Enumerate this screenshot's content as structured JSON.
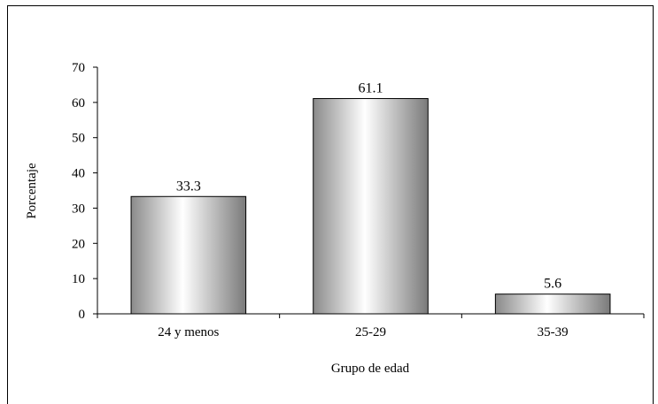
{
  "chart_data": {
    "type": "bar",
    "title": "",
    "xlabel": "Grupo de edad",
    "ylabel": "Porcentaje",
    "categories": [
      "24 y menos",
      "25-29",
      "35-39"
    ],
    "values": [
      33.3,
      61.1,
      5.6
    ],
    "value_labels": [
      "33.3",
      "61.1",
      "5.6"
    ],
    "ylim": [
      0,
      70
    ],
    "yticks": [
      0,
      10,
      20,
      30,
      40,
      50,
      60,
      70
    ],
    "grid": false,
    "legend": "none",
    "bar_fill": "cylindrical gray gradient",
    "bar_edge_color": "#000000"
  }
}
